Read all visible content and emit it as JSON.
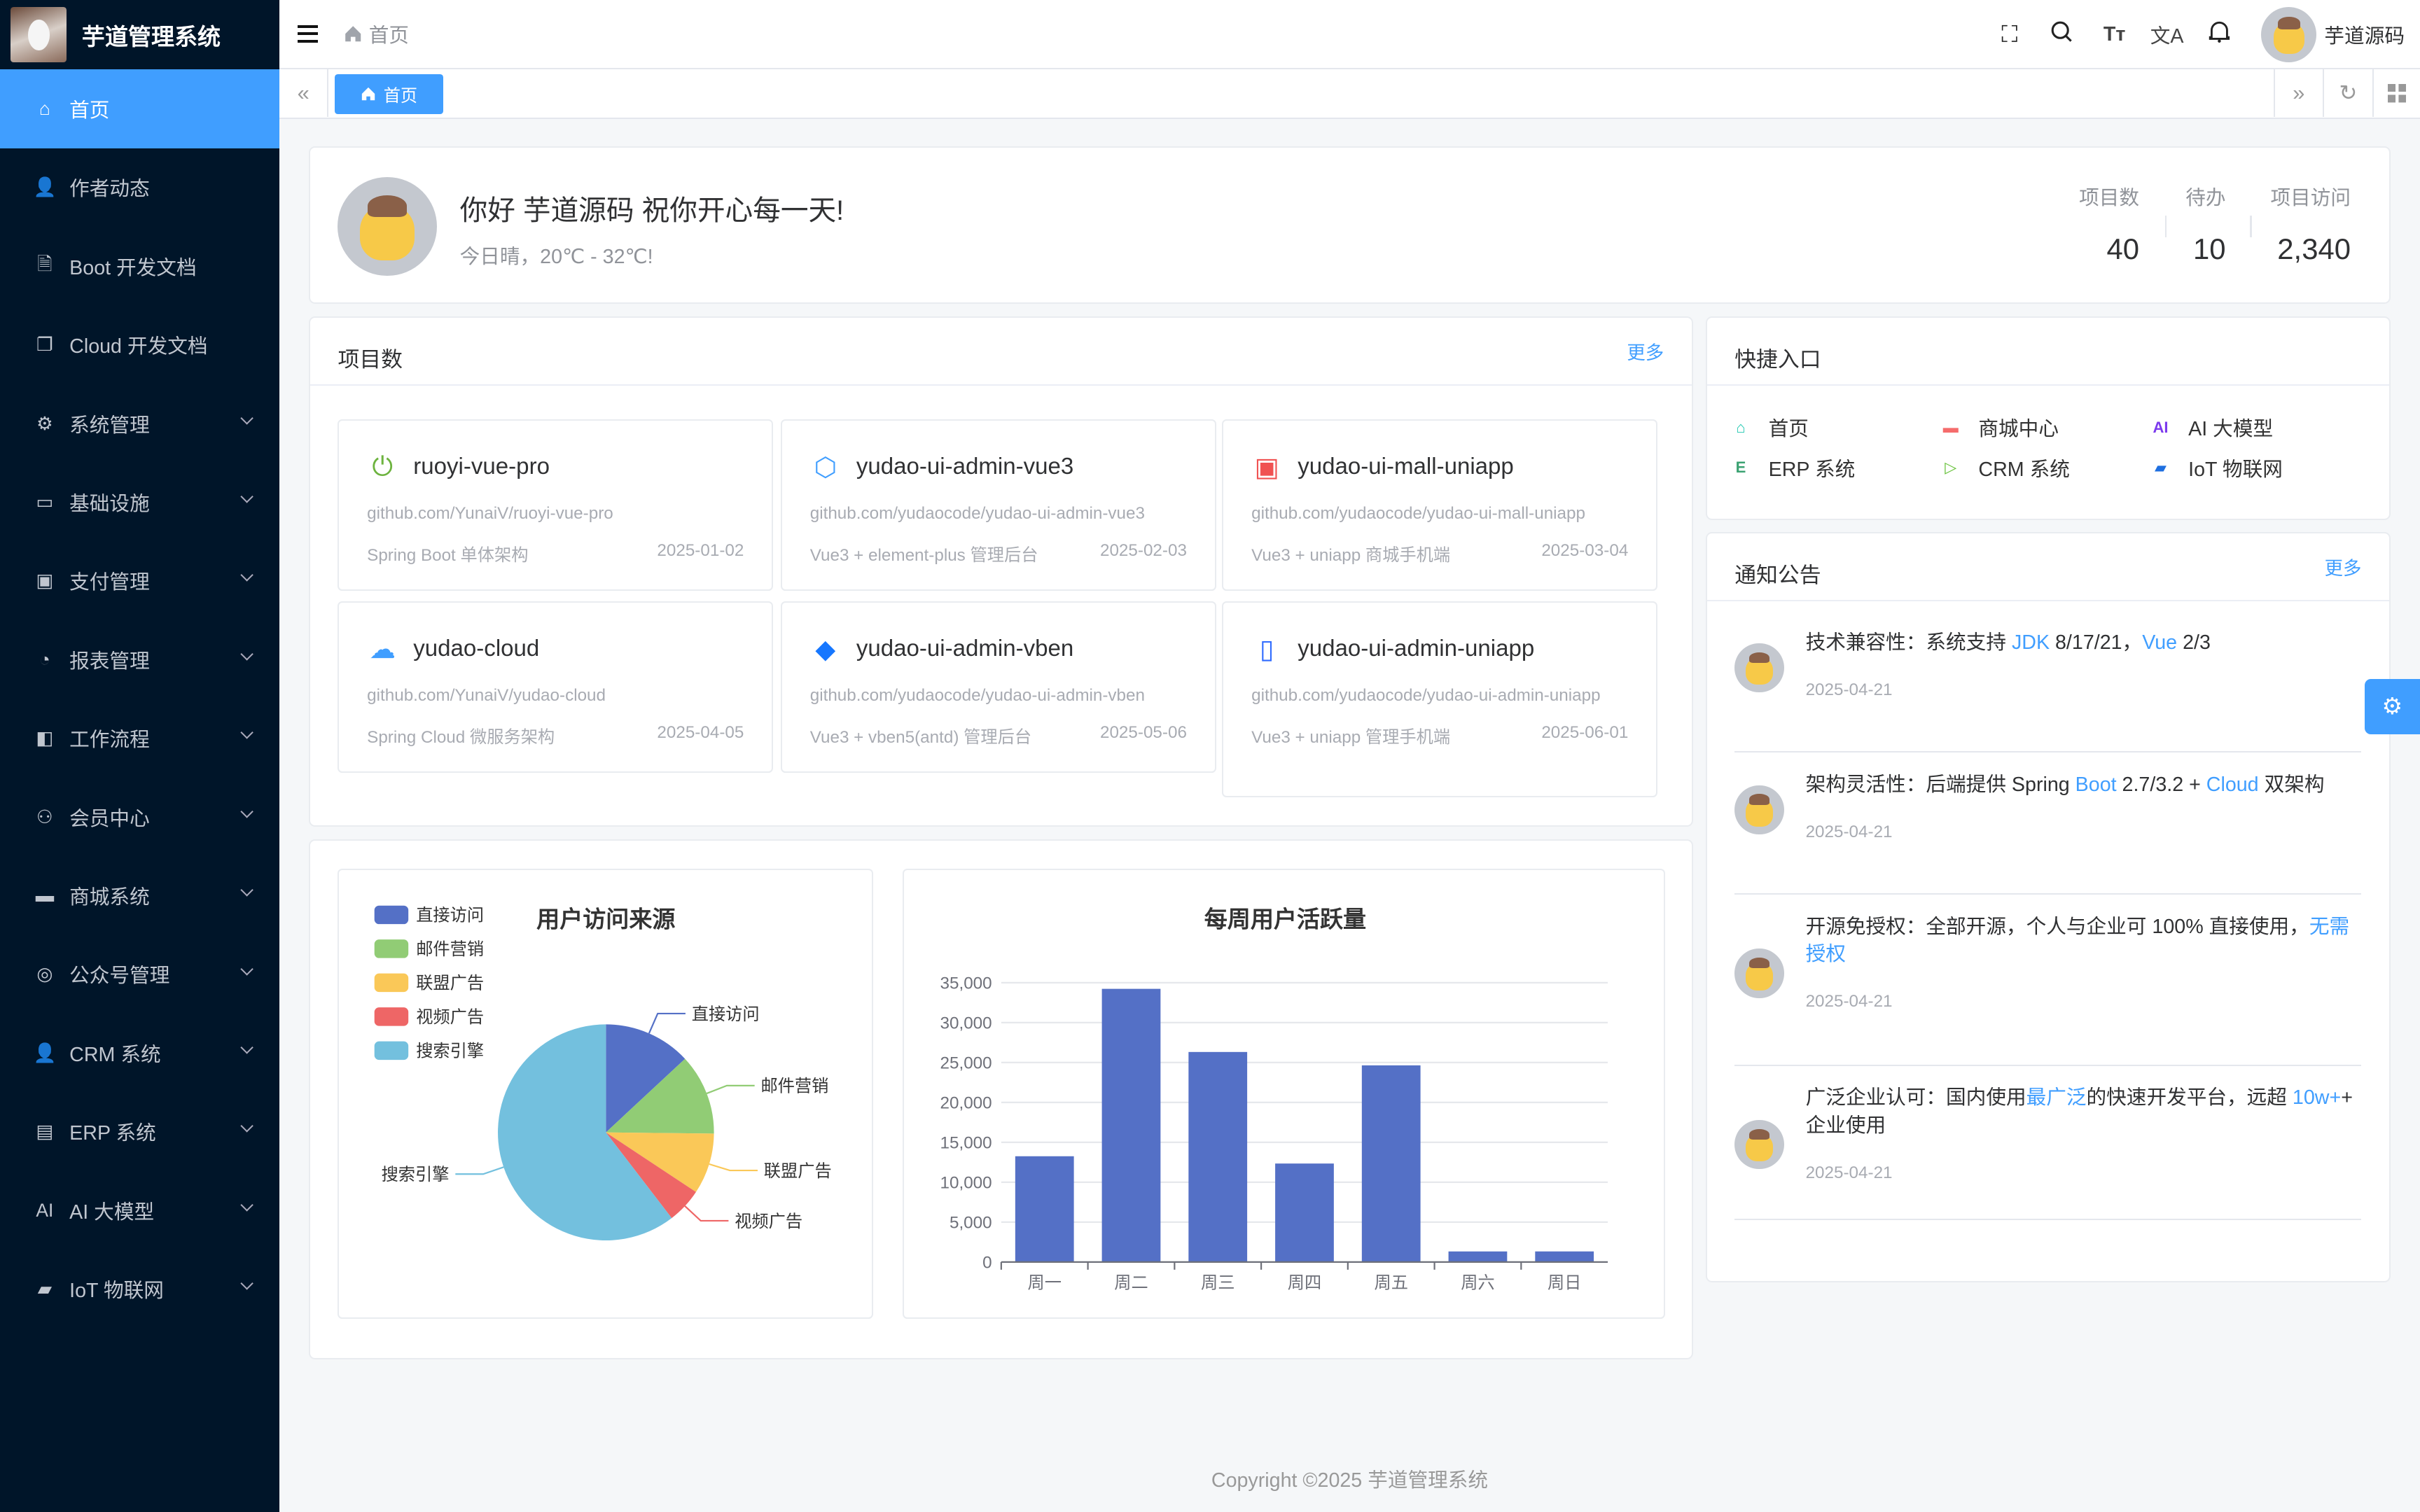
{
  "app": {
    "title": "芋道管理系统"
  },
  "sidebar": {
    "items": [
      {
        "label": "首页",
        "icon": "home-icon",
        "active": true,
        "expandable": false
      },
      {
        "label": "作者动态",
        "icon": "user-icon",
        "expandable": false
      },
      {
        "label": "Boot 开发文档",
        "icon": "document-icon",
        "expandable": false
      },
      {
        "label": "Cloud 开发文档",
        "icon": "documents-icon",
        "expandable": false
      },
      {
        "label": "系统管理",
        "icon": "gear-icon",
        "expandable": true
      },
      {
        "label": "基础设施",
        "icon": "monitor-icon",
        "expandable": true
      },
      {
        "label": "支付管理",
        "icon": "wallet-icon",
        "expandable": true
      },
      {
        "label": "报表管理",
        "icon": "pie-chart-icon",
        "expandable": true
      },
      {
        "label": "工作流程",
        "icon": "flow-icon",
        "expandable": true
      },
      {
        "label": "会员中心",
        "icon": "bicycle-icon",
        "expandable": true
      },
      {
        "label": "商城系统",
        "icon": "shop-icon",
        "expandable": true
      },
      {
        "label": "公众号管理",
        "icon": "compass-icon",
        "expandable": true
      },
      {
        "label": "CRM 系统",
        "icon": "user-icon",
        "expandable": true
      },
      {
        "label": "ERP 系统",
        "icon": "store-icon",
        "expandable": true
      },
      {
        "label": "AI 大模型",
        "icon": "ai-icon",
        "expandable": true
      },
      {
        "label": "IoT 物联网",
        "icon": "device-icon",
        "expandable": true
      }
    ]
  },
  "header": {
    "breadcrumb": "首页",
    "icons": [
      "fullscreen-icon",
      "search-icon",
      "font-size-icon",
      "translate-icon",
      "bell-icon"
    ],
    "user_name": "芋道源码"
  },
  "tags": {
    "active_tag": "首页"
  },
  "welcome": {
    "greeting": "你好 芋道源码 祝你开心每一天!",
    "weather": "今日晴，20℃ - 32℃!",
    "stats": [
      {
        "label": "项目数",
        "value": "40"
      },
      {
        "label": "待办",
        "value": "10"
      },
      {
        "label": "项目访问",
        "value": "2,340"
      }
    ]
  },
  "projects": {
    "title": "项目数",
    "more": "更多",
    "items": [
      {
        "name": "ruoyi-vue-pro",
        "url": "github.com/YunaiV/ruoyi-vue-pro",
        "desc": "Spring Boot 单体架构",
        "date": "2025-01-02",
        "icon": "spring-boot-icon",
        "color": "#6db33f"
      },
      {
        "name": "yudao-ui-admin-vue3",
        "url": "github.com/yudaocode/yudao-ui-admin-vue3",
        "desc": "Vue3 + element-plus 管理后台",
        "date": "2025-02-03",
        "icon": "element-plus-icon",
        "color": "#409eff"
      },
      {
        "name": "yudao-ui-mall-uniapp",
        "url": "github.com/yudaocode/yudao-ui-mall-uniapp",
        "desc": "Vue3 + uniapp 商城手机端",
        "date": "2025-03-04",
        "icon": "shopping-bag-icon",
        "color": "#f05252"
      },
      {
        "name": "yudao-cloud",
        "url": "github.com/YunaiV/yudao-cloud",
        "desc": "Spring Cloud 微服务架构",
        "date": "2025-04-05",
        "icon": "cloud-icon",
        "color": "#409eff"
      },
      {
        "name": "yudao-ui-admin-vben",
        "url": "github.com/yudaocode/yudao-ui-admin-vben",
        "desc": "Vue3 + vben5(antd) 管理后台",
        "date": "2025-05-06",
        "icon": "vben-icon",
        "color": "#1677ff"
      },
      {
        "name": "yudao-ui-admin-uniapp",
        "url": "github.com/yudaocode/yudao-ui-admin-uniapp",
        "desc": "Vue3 + uniapp 管理手机端",
        "date": "2025-06-01",
        "icon": "mobile-icon",
        "color": "#2f6bff"
      }
    ]
  },
  "quick": {
    "title": "快捷入口",
    "items": [
      {
        "label": "首页",
        "icon": "home-icon",
        "color": "#1fc8b0"
      },
      {
        "label": "商城中心",
        "icon": "shop-icon",
        "color": "#f56c6c"
      },
      {
        "label": "AI 大模型",
        "icon": "ai-icon",
        "color": "#7c3aed"
      },
      {
        "label": "ERP 系统",
        "icon": "erp-icon",
        "color": "#3ba272"
      },
      {
        "label": "CRM 系统",
        "icon": "crm-icon",
        "color": "#67c23a"
      },
      {
        "label": "IoT 物联网",
        "icon": "device-icon",
        "color": "#1e6fe0"
      }
    ]
  },
  "notices": {
    "title": "通知公告",
    "more": "更多",
    "items": [
      {
        "segments": [
          {
            "t": "技术兼容性：系统支持 "
          },
          {
            "t": "JDK",
            "link": true
          },
          {
            "t": " 8/17/21，"
          },
          {
            "t": "Vue",
            "link": true
          },
          {
            "t": " 2/3"
          }
        ],
        "date": "2025-04-21"
      },
      {
        "segments": [
          {
            "t": "架构灵活性：后端提供 Spring "
          },
          {
            "t": "Boot",
            "link": true
          },
          {
            "t": " 2.7/3.2 + "
          },
          {
            "t": "Cloud",
            "link": true
          },
          {
            "t": " 双架构"
          }
        ],
        "date": "2025-04-21"
      },
      {
        "segments": [
          {
            "t": "开源免授权：全部开源，个人与企业可 100% 直接使用，"
          },
          {
            "t": "无需授权",
            "link": true
          }
        ],
        "date": "2025-04-21"
      },
      {
        "segments": [
          {
            "t": "广泛企业认可：国内使用"
          },
          {
            "t": "最广泛",
            "link": true
          },
          {
            "t": "的快速开发平台，远超 "
          },
          {
            "t": "10w+",
            "link": true
          },
          {
            "t": "+ 企业使用"
          }
        ],
        "date": "2025-04-21"
      }
    ]
  },
  "chart_data": [
    {
      "type": "pie",
      "title": "用户访问来源",
      "legend_position": "top-left",
      "categories": [
        "直接访问",
        "邮件营销",
        "联盟广告",
        "视频广告",
        "搜索引擎"
      ],
      "values": [
        335,
        310,
        234,
        135,
        1548
      ],
      "colors": [
        "#5470c6",
        "#91cc75",
        "#fac858",
        "#ee6666",
        "#73c0de"
      ]
    },
    {
      "type": "bar",
      "title": "每周用户活跃量",
      "categories": [
        "周一",
        "周二",
        "周三",
        "周四",
        "周五",
        "周六",
        "周日"
      ],
      "values": [
        13253,
        34235,
        26321,
        12340,
        24643,
        1322,
        1324
      ],
      "ylim": [
        0,
        35000
      ],
      "yticks": [
        "0",
        "5,000",
        "10,000",
        "15,000",
        "20,000",
        "25,000",
        "30,000",
        "35,000"
      ],
      "grid": true,
      "color": "#5470c6"
    }
  ],
  "footer": {
    "copyright": "Copyright ©2025 芋道管理系统"
  },
  "colors": {
    "primary": "#409eff",
    "sidebar_bg": "#001529",
    "page_bg": "#f5f7f9"
  }
}
